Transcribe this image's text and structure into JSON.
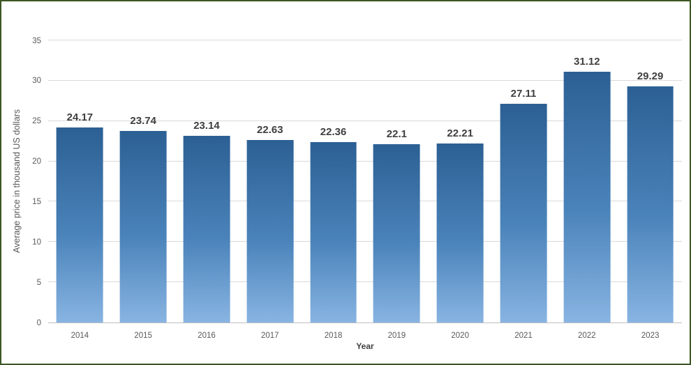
{
  "frame": {
    "border_color": "#3c5624",
    "background_color": "#ffffff"
  },
  "chart_data": {
    "type": "bar",
    "categories": [
      "2014",
      "2015",
      "2016",
      "2017",
      "2018",
      "2019",
      "2020",
      "2021",
      "2022",
      "2023"
    ],
    "values": [
      24.17,
      23.74,
      23.14,
      22.63,
      22.36,
      22.1,
      22.21,
      27.11,
      31.12,
      29.29
    ],
    "value_labels": [
      "24.17",
      "23.74",
      "23.14",
      "22.63",
      "22.36",
      "22.1",
      "22.21",
      "27.11",
      "31.12",
      "29.29"
    ],
    "title": "",
    "xlabel": "Year",
    "ylabel": "Average price in thousand US dollars",
    "ylim": [
      0,
      35
    ],
    "yticks": [
      0,
      5,
      10,
      15,
      20,
      25,
      30,
      35
    ],
    "grid": "horizontal",
    "legend": "none",
    "bar_color_top": "#2c6094",
    "bar_color_bottom": "#88b4e2",
    "gridline_color": "#d9d9d9",
    "axis_line_color": "#bfbfbf"
  }
}
